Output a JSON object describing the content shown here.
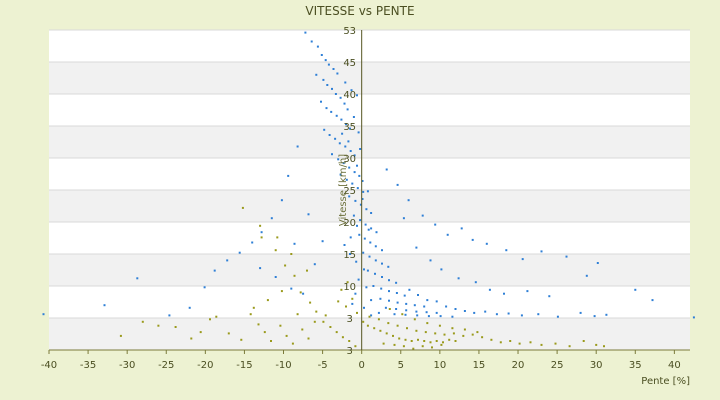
{
  "chart_data": {
    "type": "scatter",
    "title": "VITESSE vs PENTE",
    "xlabel": "Pente [%]",
    "ylabel": "Vitesse [km/h]",
    "xlim": [
      -40,
      42
    ],
    "ylim": [
      3,
      53
    ],
    "x_ticks": [
      -40,
      -35,
      -30,
      -25,
      -20,
      -15,
      -10,
      -5,
      0,
      5,
      10,
      15,
      20,
      25,
      30,
      35,
      40
    ],
    "y_tick_labels": [
      "3",
      "3",
      "10",
      "15",
      "20",
      "25",
      "30",
      "35",
      "40",
      "45",
      "53"
    ],
    "grid": true,
    "legend": "none",
    "series": [
      {
        "color": "#2e7fd6",
        "points": [
          [
            -7.2,
            52.6
          ],
          [
            -6.4,
            51.2
          ],
          [
            -5.6,
            50.4
          ],
          [
            -5.1,
            49.1
          ],
          [
            -4.6,
            48.3
          ],
          [
            -4.2,
            47.6
          ],
          [
            -3.6,
            46.9
          ],
          [
            -3.1,
            46.2
          ],
          [
            -5.8,
            46.0
          ],
          [
            -4.9,
            45.2
          ],
          [
            -4.4,
            44.4
          ],
          [
            -3.8,
            43.8
          ],
          [
            -3.3,
            43.0
          ],
          [
            -2.7,
            42.4
          ],
          [
            -2.2,
            41.5
          ],
          [
            -5.2,
            41.8
          ],
          [
            -4.5,
            40.8
          ],
          [
            -3.9,
            40.2
          ],
          [
            -3.2,
            39.6
          ],
          [
            -2.6,
            39.0
          ],
          [
            -2.0,
            38.3
          ],
          [
            -1.5,
            37.6
          ],
          [
            -4.8,
            37.4
          ],
          [
            -4.1,
            36.6
          ],
          [
            -3.4,
            36.0
          ],
          [
            -2.8,
            35.3
          ],
          [
            -2.1,
            34.8
          ],
          [
            -1.4,
            34.1
          ],
          [
            -0.9,
            33.4
          ],
          [
            -3.8,
            33.6
          ],
          [
            -3.0,
            32.8
          ],
          [
            -2.3,
            32.2
          ],
          [
            -1.6,
            31.5
          ],
          [
            -0.9,
            30.8
          ],
          [
            -0.3,
            30.2
          ],
          [
            -2.7,
            30.4
          ],
          [
            -1.9,
            29.6
          ],
          [
            -1.2,
            29.0
          ],
          [
            -0.5,
            28.3
          ],
          [
            0.2,
            27.7
          ],
          [
            -1.6,
            27.0
          ],
          [
            -0.8,
            26.3
          ],
          [
            -0.1,
            25.7
          ],
          [
            0.6,
            25.0
          ],
          [
            1.2,
            24.4
          ],
          [
            -1.0,
            24.0
          ],
          [
            -0.2,
            23.3
          ],
          [
            0.5,
            22.6
          ],
          [
            1.2,
            22.0
          ],
          [
            1.9,
            21.4
          ],
          [
            -0.3,
            21.0
          ],
          [
            0.4,
            20.4
          ],
          [
            1.1,
            19.8
          ],
          [
            1.8,
            19.2
          ],
          [
            2.6,
            18.6
          ],
          [
            0.2,
            18.2
          ],
          [
            1.0,
            17.6
          ],
          [
            1.8,
            17.0
          ],
          [
            2.6,
            16.5
          ],
          [
            3.4,
            16.0
          ],
          [
            0.8,
            15.4
          ],
          [
            1.7,
            14.9
          ],
          [
            2.6,
            14.4
          ],
          [
            3.5,
            13.9
          ],
          [
            4.4,
            13.5
          ],
          [
            1.5,
            13.0
          ],
          [
            2.5,
            12.6
          ],
          [
            3.5,
            12.2
          ],
          [
            4.5,
            11.9
          ],
          [
            5.5,
            11.5
          ],
          [
            2.4,
            11.0
          ],
          [
            3.5,
            10.7
          ],
          [
            4.6,
            10.4
          ],
          [
            5.7,
            10.2
          ],
          [
            6.8,
            10.0
          ],
          [
            8.0,
            9.8
          ],
          [
            3.1,
            9.6
          ],
          [
            4.4,
            9.4
          ],
          [
            5.7,
            9.2
          ],
          [
            7.0,
            9.0
          ],
          [
            8.3,
            8.9
          ],
          [
            9.6,
            8.8
          ],
          [
            4.2,
            8.6
          ],
          [
            5.6,
            8.5
          ],
          [
            7.1,
            8.4
          ],
          [
            8.6,
            8.3
          ],
          [
            10.1,
            8.3
          ],
          [
            11.6,
            8.2
          ],
          [
            -2.1,
            44.8
          ],
          [
            -1.3,
            43.6
          ],
          [
            -0.6,
            42.8
          ],
          [
            -1.8,
            40.6
          ],
          [
            -1.0,
            39.4
          ],
          [
            -0.4,
            37.0
          ],
          [
            -2.5,
            36.8
          ],
          [
            -1.7,
            35.6
          ],
          [
            -0.2,
            34.4
          ],
          [
            -0.6,
            31.8
          ],
          [
            0.1,
            29.4
          ],
          [
            0.8,
            27.8
          ],
          [
            0.1,
            26.6
          ],
          [
            -0.6,
            22.4
          ],
          [
            0.9,
            21.8
          ],
          [
            -1.4,
            20.6
          ],
          [
            -2.2,
            19.4
          ],
          [
            -1.5,
            18.0
          ],
          [
            -0.7,
            16.8
          ],
          [
            0.3,
            15.6
          ],
          [
            -0.4,
            14.0
          ],
          [
            0.6,
            12.8
          ],
          [
            -0.8,
            11.8
          ],
          [
            1.2,
            10.8
          ],
          [
            -1.2,
            10.2
          ],
          [
            0.3,
            9.6
          ],
          [
            2.2,
            8.8
          ],
          [
            1.2,
            8.4
          ],
          [
            6.1,
            12.4
          ],
          [
            7.2,
            11.6
          ],
          [
            8.4,
            10.8
          ],
          [
            9.6,
            10.6
          ],
          [
            10.8,
            9.8
          ],
          [
            12.0,
            9.4
          ],
          [
            13.2,
            9.1
          ],
          [
            14.4,
            8.8
          ],
          [
            15.8,
            9.0
          ],
          [
            17.3,
            8.6
          ],
          [
            18.8,
            8.7
          ],
          [
            20.5,
            8.4
          ],
          [
            22.6,
            8.6
          ],
          [
            25.1,
            8.2
          ],
          [
            28.0,
            8.8
          ],
          [
            29.8,
            8.3
          ],
          [
            31.3,
            8.5
          ],
          [
            37.2,
            10.8
          ],
          [
            42.5,
            8.1
          ],
          [
            -8.2,
            34.8
          ],
          [
            -9.4,
            30.2
          ],
          [
            -10.2,
            26.4
          ],
          [
            -11.5,
            23.6
          ],
          [
            -12.8,
            21.4
          ],
          [
            -14.0,
            19.8
          ],
          [
            -15.6,
            18.2
          ],
          [
            -17.2,
            17.0
          ],
          [
            -18.8,
            15.4
          ],
          [
            -20.1,
            12.8
          ],
          [
            -22.0,
            9.6
          ],
          [
            -24.6,
            8.4
          ],
          [
            -28.7,
            14.2
          ],
          [
            -32.9,
            10.0
          ],
          [
            -40.7,
            8.6
          ],
          [
            -13.0,
            15.8
          ],
          [
            -11.0,
            14.4
          ],
          [
            -9.0,
            12.6
          ],
          [
            -7.5,
            11.8
          ],
          [
            -6.0,
            16.4
          ],
          [
            -5.0,
            20.0
          ],
          [
            -6.8,
            24.2
          ],
          [
            -8.6,
            19.6
          ],
          [
            3.2,
            31.2
          ],
          [
            4.6,
            28.8
          ],
          [
            6.0,
            26.4
          ],
          [
            7.8,
            24.0
          ],
          [
            9.4,
            22.6
          ],
          [
            11.0,
            21.0
          ],
          [
            12.8,
            22.0
          ],
          [
            14.2,
            20.2
          ],
          [
            16.0,
            19.6
          ],
          [
            18.5,
            18.6
          ],
          [
            20.6,
            17.2
          ],
          [
            23.0,
            18.4
          ],
          [
            26.2,
            17.6
          ],
          [
            28.8,
            14.6
          ],
          [
            30.2,
            16.6
          ],
          [
            35.0,
            12.4
          ],
          [
            5.4,
            23.6
          ],
          [
            7.0,
            19.0
          ],
          [
            8.8,
            17.0
          ],
          [
            10.2,
            15.6
          ],
          [
            12.4,
            14.2
          ],
          [
            14.6,
            13.6
          ],
          [
            16.4,
            12.4
          ],
          [
            18.2,
            11.8
          ],
          [
            21.2,
            12.2
          ],
          [
            24.0,
            11.4
          ]
        ]
      },
      {
        "color": "#9a9a1c",
        "points": [
          [
            -15.2,
            25.2
          ],
          [
            -13.0,
            22.4
          ],
          [
            -12.8,
            20.6
          ],
          [
            -11.0,
            18.6
          ],
          [
            -9.8,
            16.2
          ],
          [
            -8.6,
            14.6
          ],
          [
            -7.8,
            12.0
          ],
          [
            -6.6,
            10.4
          ],
          [
            -5.8,
            9.0
          ],
          [
            -4.9,
            7.4
          ],
          [
            -4.0,
            6.6
          ],
          [
            -3.2,
            5.8
          ],
          [
            -2.4,
            5.0
          ],
          [
            -1.6,
            4.4
          ],
          [
            -0.8,
            3.6
          ],
          [
            -14.2,
            8.6
          ],
          [
            -13.2,
            7.0
          ],
          [
            -12.4,
            5.8
          ],
          [
            -11.6,
            4.4
          ],
          [
            -10.4,
            6.8
          ],
          [
            -9.6,
            5.2
          ],
          [
            -8.8,
            4.0
          ],
          [
            -7.6,
            6.2
          ],
          [
            -6.8,
            4.8
          ],
          [
            -18.6,
            8.2
          ],
          [
            -20.6,
            5.8
          ],
          [
            -21.8,
            4.8
          ],
          [
            -23.8,
            6.6
          ],
          [
            -26.0,
            6.8
          ],
          [
            -28.0,
            7.4
          ],
          [
            -30.8,
            5.2
          ],
          [
            -15.4,
            4.6
          ],
          [
            -17.0,
            5.6
          ],
          [
            -19.4,
            7.8
          ],
          [
            -13.8,
            9.6
          ],
          [
            -12.0,
            10.8
          ],
          [
            -10.2,
            12.2
          ],
          [
            -8.2,
            8.6
          ],
          [
            -6.0,
            7.4
          ],
          [
            -4.6,
            8.4
          ],
          [
            0.2,
            7.4
          ],
          [
            0.8,
            6.8
          ],
          [
            1.6,
            6.4
          ],
          [
            2.4,
            6.0
          ],
          [
            3.2,
            5.6
          ],
          [
            4.0,
            5.2
          ],
          [
            4.8,
            4.8
          ],
          [
            5.6,
            4.6
          ],
          [
            6.4,
            4.4
          ],
          [
            7.2,
            4.6
          ],
          [
            8.0,
            4.4
          ],
          [
            8.8,
            4.2
          ],
          [
            9.6,
            4.4
          ],
          [
            10.4,
            4.2
          ],
          [
            11.2,
            4.6
          ],
          [
            12.0,
            4.4
          ],
          [
            1.0,
            8.2
          ],
          [
            2.2,
            7.8
          ],
          [
            3.4,
            7.2
          ],
          [
            4.6,
            6.8
          ],
          [
            5.8,
            6.4
          ],
          [
            7.0,
            6.0
          ],
          [
            8.2,
            5.8
          ],
          [
            9.4,
            5.6
          ],
          [
            10.6,
            5.4
          ],
          [
            11.8,
            5.6
          ],
          [
            13.0,
            5.2
          ],
          [
            14.2,
            5.4
          ],
          [
            15.4,
            5.0
          ],
          [
            16.6,
            4.6
          ],
          [
            17.8,
            4.2
          ],
          [
            19.0,
            4.4
          ],
          [
            20.2,
            4.0
          ],
          [
            21.6,
            4.2
          ],
          [
            23.0,
            3.8
          ],
          [
            24.8,
            4.0
          ],
          [
            26.6,
            3.6
          ],
          [
            28.4,
            4.4
          ],
          [
            30.0,
            3.8
          ],
          [
            31.0,
            3.6
          ],
          [
            3.6,
            9.4
          ],
          [
            5.2,
            8.6
          ],
          [
            6.8,
            7.8
          ],
          [
            8.4,
            7.2
          ],
          [
            10.0,
            6.8
          ],
          [
            11.6,
            6.4
          ],
          [
            13.2,
            6.2
          ],
          [
            14.8,
            5.8
          ],
          [
            2.8,
            4.0
          ],
          [
            4.2,
            3.8
          ],
          [
            5.4,
            3.6
          ],
          [
            6.6,
            3.2
          ],
          [
            7.8,
            3.6
          ],
          [
            9.0,
            3.4
          ],
          [
            10.2,
            3.8
          ],
          [
            -2.0,
            9.8
          ],
          [
            -1.2,
            11.0
          ],
          [
            -0.6,
            8.8
          ],
          [
            -3.0,
            10.6
          ],
          [
            -2.6,
            12.4
          ],
          [
            -1.8,
            13.6
          ],
          [
            -7.0,
            15.4
          ],
          [
            -9.0,
            18.0
          ],
          [
            -10.8,
            20.6
          ]
        ]
      }
    ]
  }
}
